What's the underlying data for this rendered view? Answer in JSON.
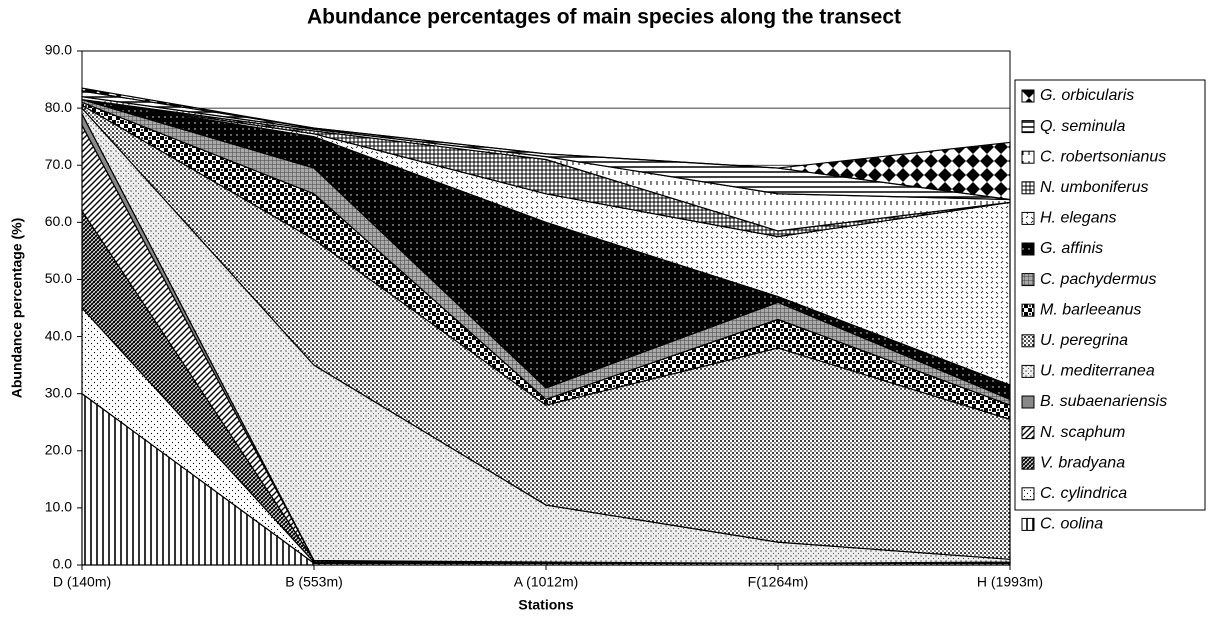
{
  "chart_data": {
    "type": "stacked_area",
    "title": "Abundance percentages of main species along the transect",
    "x_label": "Stations",
    "y_label": "Abundance percentage (%)",
    "categories": [
      "D (140m)",
      "B (553m)",
      "A (1012m)",
      "F(1264m)",
      "H (1993m)"
    ],
    "ylim": [
      0,
      90
    ],
    "yticks": [
      {
        "value": 0,
        "label": "0.0"
      },
      {
        "value": 10,
        "label": "10.0"
      },
      {
        "value": 20,
        "label": "20.0"
      },
      {
        "value": 30,
        "label": "30.0"
      },
      {
        "value": 40,
        "label": "40.0"
      },
      {
        "value": 50,
        "label": "50.0"
      },
      {
        "value": 60,
        "label": "60.0"
      },
      {
        "value": 70,
        "label": "70.0"
      },
      {
        "value": 80,
        "label": "80.0"
      },
      {
        "value": 90,
        "label": "90.0"
      }
    ],
    "grid": true,
    "series": [
      {
        "name": "C. oolina",
        "values": [
          30,
          0.3,
          0.3,
          0.3,
          0.3
        ]
      },
      {
        "name": "C. cylindrica",
        "values": [
          15,
          0.2,
          0.2,
          0,
          0.2
        ]
      },
      {
        "name": "V. bradyana",
        "values": [
          17,
          0.3,
          0,
          0,
          0
        ]
      },
      {
        "name": "N. scaphum",
        "values": [
          15,
          0,
          0,
          0,
          0
        ]
      },
      {
        "name": "B. subaenariensis",
        "values": [
          2,
          0,
          0,
          0,
          0
        ]
      },
      {
        "name": "U. mediterranea",
        "values": [
          1,
          34.2,
          10,
          3.7,
          0.5
        ]
      },
      {
        "name": "U. peregrina",
        "values": [
          0.5,
          22,
          17.5,
          34,
          24.5
        ]
      },
      {
        "name": "M. barleeanus",
        "values": [
          0.5,
          8,
          1,
          5,
          2.5
        ]
      },
      {
        "name": "C. pachydermus",
        "values": [
          0.5,
          4.5,
          2,
          3,
          1
        ]
      },
      {
        "name": "G. affinis",
        "values": [
          0,
          5.5,
          29,
          1,
          2.5
        ]
      },
      {
        "name": "H. elegans",
        "values": [
          0,
          0.5,
          5,
          10.5,
          32
        ]
      },
      {
        "name": "N. umboniferus",
        "values": [
          0,
          0.5,
          6,
          1,
          0
        ]
      },
      {
        "name": "C. robertsonianus",
        "values": [
          0.5,
          0.3,
          0.5,
          6.5,
          0.5
        ]
      },
      {
        "name": "Q. seminula",
        "values": [
          1,
          0.2,
          0.5,
          4.5,
          0
        ]
      },
      {
        "name": "G. orbicularis",
        "values": [
          0.5,
          0,
          0,
          0,
          10
        ]
      }
    ]
  }
}
